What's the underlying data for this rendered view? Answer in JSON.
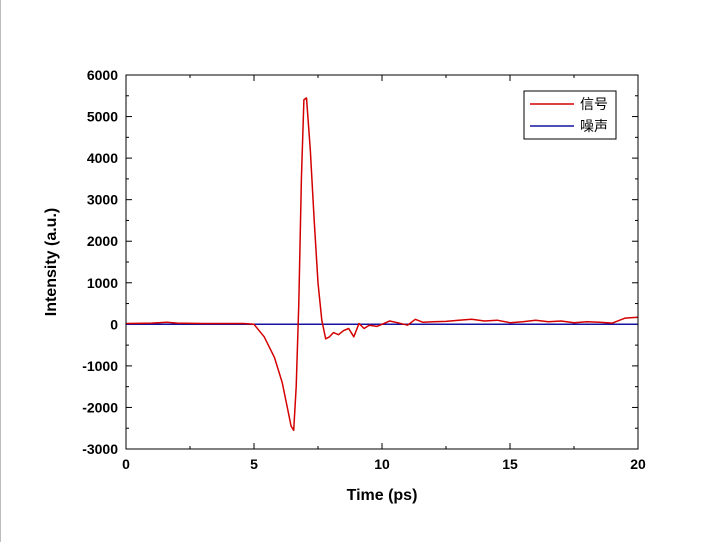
{
  "chart_data": {
    "type": "line",
    "title": "",
    "xlabel": "Time (ps)",
    "ylabel": "Intensity (a.u.)",
    "xlim": [
      0,
      20
    ],
    "ylim": [
      -3000,
      6000
    ],
    "x_ticks": [
      0,
      5,
      10,
      15,
      20
    ],
    "y_ticks": [
      -3000,
      -2000,
      -1000,
      0,
      1000,
      2000,
      3000,
      4000,
      5000,
      6000
    ],
    "x_tick_labels": [
      "0",
      "5",
      "10",
      "15",
      "20"
    ],
    "y_tick_labels": [
      "-3000",
      "-2000",
      "-1000",
      "0",
      "1000",
      "2000",
      "3000",
      "4000",
      "5000",
      "6000"
    ],
    "grid": false,
    "legend_position": "top-right",
    "series": [
      {
        "name": "信号",
        "color": "#d40000",
        "x": [
          0,
          1,
          1.6,
          2,
          3,
          4,
          4.6,
          5.0,
          5.4,
          5.8,
          6.1,
          6.3,
          6.45,
          6.55,
          6.65,
          6.75,
          6.85,
          6.95,
          7.05,
          7.2,
          7.35,
          7.5,
          7.65,
          7.8,
          7.95,
          8.1,
          8.3,
          8.5,
          8.7,
          8.9,
          9.1,
          9.3,
          9.5,
          9.8,
          10.0,
          10.3,
          10.6,
          11.0,
          11.3,
          11.6,
          12,
          12.5,
          13,
          13.5,
          14,
          14.5,
          15,
          15.5,
          16,
          16.5,
          17,
          17.5,
          18,
          18.5,
          19,
          19.5,
          20
        ],
        "y": [
          20,
          30,
          50,
          30,
          20,
          20,
          20,
          0,
          -300,
          -800,
          -1400,
          -2000,
          -2450,
          -2550,
          -1500,
          500,
          3500,
          5400,
          5450,
          4200,
          2500,
          1000,
          100,
          -350,
          -300,
          -200,
          -250,
          -150,
          -100,
          -300,
          20,
          -100,
          -20,
          -50,
          0,
          80,
          40,
          -20,
          120,
          50,
          60,
          70,
          100,
          120,
          80,
          100,
          40,
          60,
          100,
          60,
          80,
          40,
          60,
          50,
          30,
          150,
          170
        ]
      },
      {
        "name": "噪声",
        "color": "#1414a0",
        "x": [
          0,
          20
        ],
        "y": [
          0,
          0
        ]
      }
    ]
  }
}
